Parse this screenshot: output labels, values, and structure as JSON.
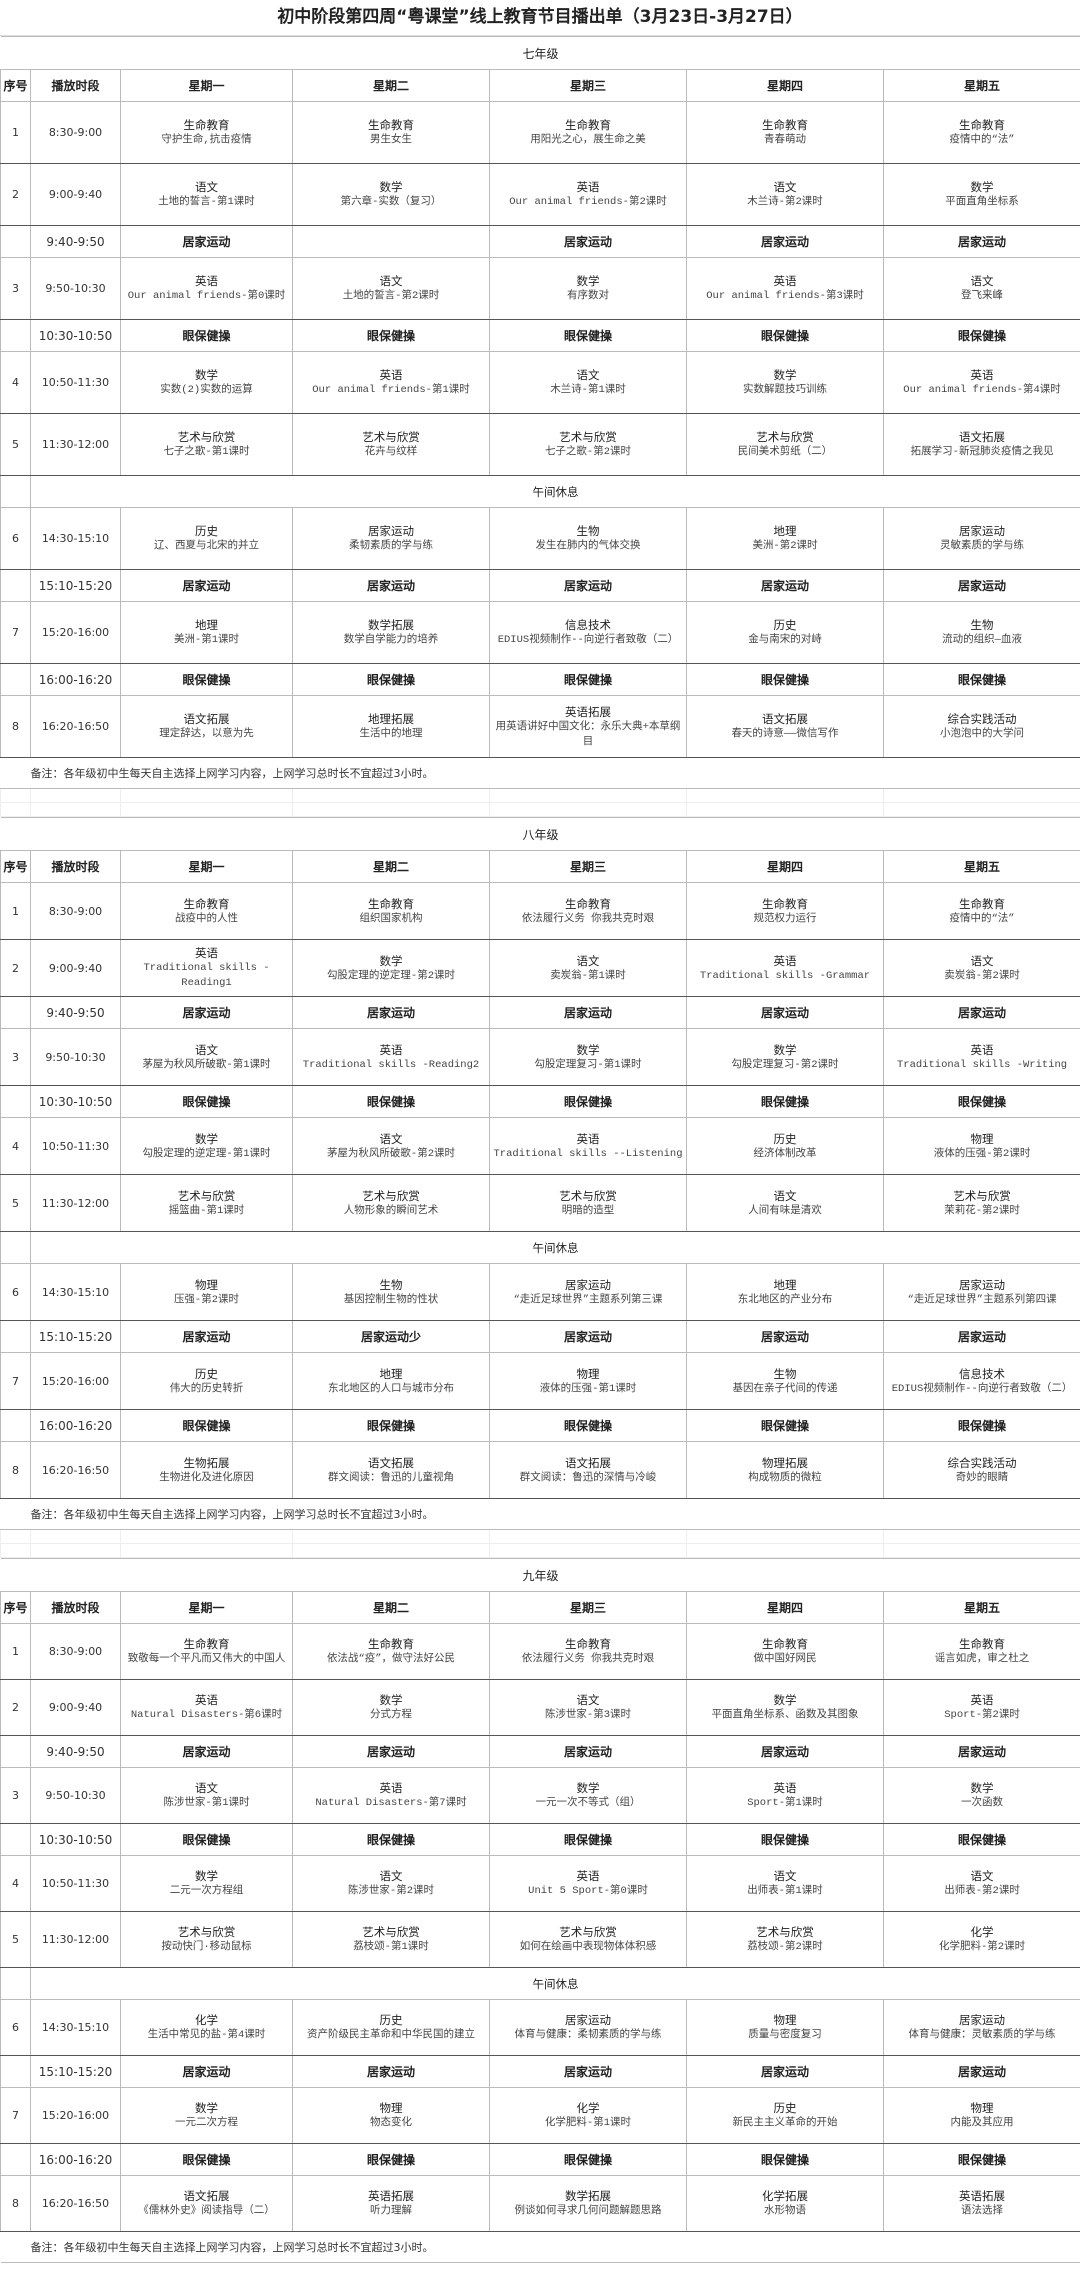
{
  "title": "初中阶段第四周“粤课堂”线上教育节目播出单（3月23日-3月27日）",
  "headers": {
    "seq": "序号",
    "time": "播放时段",
    "days": [
      "星期一",
      "星期二",
      "星期三",
      "星期四",
      "星期五"
    ]
  },
  "grades": [
    {
      "label": "七年级",
      "note": "备注：各年级初中生每天自主选择上网学习内容，上网学习总时长不宜超过3小时。",
      "rows": [
        {
          "type": "lesson",
          "seq": "1",
          "time": "8:30-9:00",
          "cells": [
            {
              "subject": "生命教育",
              "topic": "守护生命,抗击疫情"
            },
            {
              "subject": "生命教育",
              "topic": "男生女生"
            },
            {
              "subject": "生命教育",
              "topic": "用阳光之心，展生命之美"
            },
            {
              "subject": "生命教育",
              "topic": "青春萌动"
            },
            {
              "subject": "生命教育",
              "topic": "疫情中的“法”"
            }
          ]
        },
        {
          "type": "lesson",
          "seq": "2",
          "time": "9:00-9:40",
          "cells": [
            {
              "subject": "语文",
              "topic": "土地的誓言-第1课时"
            },
            {
              "subject": "数学",
              "topic": "第六章-实数（复习）"
            },
            {
              "subject": "英语",
              "topic": "Our animal friends-第2课时"
            },
            {
              "subject": "语文",
              "topic": "木兰诗-第2课时"
            },
            {
              "subject": "数学",
              "topic": "平面直角坐标系"
            }
          ]
        },
        {
          "type": "activity",
          "time": "9:40-9:50",
          "cells": [
            "居家运动",
            "",
            "居家运动",
            "居家运动",
            "居家运动"
          ]
        },
        {
          "type": "lesson",
          "seq": "3",
          "time": "9:50-10:30",
          "cells": [
            {
              "subject": "英语",
              "topic": "Our animal friends-第0课时"
            },
            {
              "subject": "语文",
              "topic": "土地的誓言-第2课时"
            },
            {
              "subject": "数学",
              "topic": "有序数对"
            },
            {
              "subject": "英语",
              "topic": "Our animal friends-第3课时"
            },
            {
              "subject": "语文",
              "topic": "登飞来峰"
            }
          ]
        },
        {
          "type": "activity",
          "time": "10:30-10:50",
          "cells": [
            "眼保健操",
            "眼保健操",
            "眼保健操",
            "眼保健操",
            "眼保健操"
          ]
        },
        {
          "type": "lesson",
          "seq": "4",
          "time": "10:50-11:30",
          "cells": [
            {
              "subject": "数学",
              "topic": "实数(2)实数的运算"
            },
            {
              "subject": "英语",
              "topic": "Our animal friends-第1课时"
            },
            {
              "subject": "语文",
              "topic": "木兰诗-第1课时"
            },
            {
              "subject": "数学",
              "topic": "实数解题技巧训练"
            },
            {
              "subject": "英语",
              "topic": "Our animal friends-第4课时"
            }
          ]
        },
        {
          "type": "lesson",
          "seq": "5",
          "time": "11:30-12:00",
          "cells": [
            {
              "subject": "艺术与欣赏",
              "topic": "七子之歌-第1课时"
            },
            {
              "subject": "艺术与欣赏",
              "topic": "花卉与纹样"
            },
            {
              "subject": "艺术与欣赏",
              "topic": "七子之歌-第2课时"
            },
            {
              "subject": "艺术与欣赏",
              "topic": "民间美术剪纸（二）"
            },
            {
              "subject": "语文拓展",
              "topic": "拓展学习-新冠肺炎疫情之我见"
            }
          ]
        },
        {
          "type": "break",
          "label": "午间休息"
        },
        {
          "type": "lesson",
          "seq": "6",
          "time": "14:30-15:10",
          "cells": [
            {
              "subject": "历史",
              "topic": "辽、西夏与北宋的并立"
            },
            {
              "subject": "居家运动",
              "topic": "柔韧素质的学与练"
            },
            {
              "subject": "生物",
              "topic": "发生在肺内的气体交换"
            },
            {
              "subject": "地理",
              "topic": "美洲-第2课时"
            },
            {
              "subject": "居家运动",
              "topic": "灵敏素质的学与练"
            }
          ]
        },
        {
          "type": "activity",
          "time": "15:10-15:20",
          "cells": [
            "居家运动",
            "居家运动",
            "居家运动",
            "居家运动",
            "居家运动"
          ]
        },
        {
          "type": "lesson",
          "seq": "7",
          "time": "15:20-16:00",
          "cells": [
            {
              "subject": "地理",
              "topic": "美洲-第1课时"
            },
            {
              "subject": "数学拓展",
              "topic": "数学自学能力的培养"
            },
            {
              "subject": "信息技术",
              "topic": "EDIUS视频制作--向逆行者致敬（二）"
            },
            {
              "subject": "历史",
              "topic": "金与南宋的对峙"
            },
            {
              "subject": "生物",
              "topic": "流动的组织—血液"
            }
          ]
        },
        {
          "type": "activity",
          "time": "16:00-16:20",
          "cells": [
            "眼保健操",
            "眼保健操",
            "眼保健操",
            "眼保健操",
            "眼保健操"
          ]
        },
        {
          "type": "lesson",
          "seq": "8",
          "time": "16:20-16:50",
          "cells": [
            {
              "subject": "语文拓展",
              "topic": "理定辞达，以意为先"
            },
            {
              "subject": "地理拓展",
              "topic": "生活中的地理"
            },
            {
              "subject": "英语拓展",
              "topic": "用英语讲好中国文化：永乐大典+本草纲目"
            },
            {
              "subject": "语文拓展",
              "topic": "春天的诗意——微信写作"
            },
            {
              "subject": "综合实践活动",
              "topic": "小泡泡中的大学问"
            }
          ]
        }
      ]
    },
    {
      "label": "八年级",
      "note": "备注：各年级初中生每天自主选择上网学习内容，上网学习总时长不宜超过3小时。",
      "rows": [
        {
          "type": "lesson",
          "seq": "1",
          "time": "8:30-9:00",
          "cells": [
            {
              "subject": "生命教育",
              "topic": "战疫中的人性"
            },
            {
              "subject": "生命教育",
              "topic": "组织国家机构"
            },
            {
              "subject": "生命教育",
              "topic": "依法履行义务  你我共克时艰"
            },
            {
              "subject": "生命教育",
              "topic": "规范权力运行"
            },
            {
              "subject": "生命教育",
              "topic": "疫情中的“法”"
            }
          ]
        },
        {
          "type": "lesson",
          "seq": "2",
          "time": "9:00-9:40",
          "cells": [
            {
              "subject": "英语",
              "topic": "Traditional skills -Reading1"
            },
            {
              "subject": "数学",
              "topic": "勾股定理的逆定理-第2课时"
            },
            {
              "subject": "语文",
              "topic": "卖炭翁-第1课时"
            },
            {
              "subject": "英语",
              "topic": "Traditional skills  -Grammar"
            },
            {
              "subject": "语文",
              "topic": "卖炭翁-第2课时"
            }
          ]
        },
        {
          "type": "activity",
          "time": "9:40-9:50",
          "cells": [
            "居家运动",
            "居家运动",
            "居家运动",
            "居家运动",
            "居家运动"
          ]
        },
        {
          "type": "lesson",
          "seq": "3",
          "time": "9:50-10:30",
          "cells": [
            {
              "subject": "语文",
              "topic": "茅屋为秋风所破歌-第1课时"
            },
            {
              "subject": "英语",
              "topic": "Traditional skills -Reading2"
            },
            {
              "subject": "数学",
              "topic": "勾股定理复习-第1课时"
            },
            {
              "subject": "数学",
              "topic": "勾股定理复习-第2课时"
            },
            {
              "subject": "英语",
              "topic": "Traditional skills -Writing"
            }
          ]
        },
        {
          "type": "activity",
          "time": "10:30-10:50",
          "cells": [
            "眼保健操",
            "眼保健操",
            "眼保健操",
            "眼保健操",
            "眼保健操"
          ]
        },
        {
          "type": "lesson",
          "seq": "4",
          "time": "10:50-11:30",
          "cells": [
            {
              "subject": "数学",
              "topic": "勾股定理的逆定理-第1课时"
            },
            {
              "subject": "语文",
              "topic": "茅屋为秋风所破歌-第2课时"
            },
            {
              "subject": "英语",
              "topic": "Traditional skills --Listening"
            },
            {
              "subject": "历史",
              "topic": "经济体制改革"
            },
            {
              "subject": "物理",
              "topic": "液体的压强-第2课时"
            }
          ]
        },
        {
          "type": "lesson",
          "seq": "5",
          "time": "11:30-12:00",
          "cells": [
            {
              "subject": "艺术与欣赏",
              "topic": "摇篮曲-第1课时"
            },
            {
              "subject": "艺术与欣赏",
              "topic": "人物形象的瞬间艺术"
            },
            {
              "subject": "艺术与欣赏",
              "topic": "明暗的造型"
            },
            {
              "subject": "语文",
              "topic": "人间有味是清欢"
            },
            {
              "subject": "艺术与欣赏",
              "topic": "茉莉花-第2课时"
            }
          ]
        },
        {
          "type": "break",
          "label": "午间休息"
        },
        {
          "type": "lesson",
          "seq": "6",
          "time": "14:30-15:10",
          "cells": [
            {
              "subject": "物理",
              "topic": "压强-第2课时"
            },
            {
              "subject": "生物",
              "topic": "基因控制生物的性状"
            },
            {
              "subject": "居家运动",
              "topic": "“走近足球世界”主题系列第三课"
            },
            {
              "subject": "地理",
              "topic": "东北地区的产业分布"
            },
            {
              "subject": "居家运动",
              "topic": "“走近足球世界”主题系列第四课"
            }
          ]
        },
        {
          "type": "activity",
          "time": "15:10-15:20",
          "cells": [
            "居家运动",
            "居家运动少",
            "居家运动",
            "居家运动",
            "居家运动"
          ]
        },
        {
          "type": "lesson",
          "seq": "7",
          "time": "15:20-16:00",
          "cells": [
            {
              "subject": "历史",
              "topic": "伟大的历史转折"
            },
            {
              "subject": "地理",
              "topic": "东北地区的人口与城市分布"
            },
            {
              "subject": "物理",
              "topic": "液体的压强-第1课时"
            },
            {
              "subject": "生物",
              "topic": "基因在亲子代间的传递"
            },
            {
              "subject": "信息技术",
              "topic": "EDIUS视频制作--向逆行者致敬（二）"
            }
          ]
        },
        {
          "type": "activity",
          "time": "16:00-16:20",
          "cells": [
            "眼保健操",
            "眼保健操",
            "眼保健操",
            "眼保健操",
            "眼保健操"
          ]
        },
        {
          "type": "lesson",
          "seq": "8",
          "time": "16:20-16:50",
          "cells": [
            {
              "subject": "生物拓展",
              "topic": "生物进化及进化原因"
            },
            {
              "subject": "语文拓展",
              "topic": "群文阅读：鲁迅的儿童视角"
            },
            {
              "subject": "语文拓展",
              "topic": "群文阅读：鲁迅的深情与冷峻"
            },
            {
              "subject": "物理拓展",
              "topic": "构成物质的微粒"
            },
            {
              "subject": "综合实践活动",
              "topic": "奇妙的眼睛"
            }
          ]
        }
      ]
    },
    {
      "label": "九年级",
      "note": "备注：各年级初中生每天自主选择上网学习内容，上网学习总时长不宜超过3小时。",
      "rows": [
        {
          "type": "lesson",
          "seq": "1",
          "time": "8:30-9:00",
          "cells": [
            {
              "subject": "生命教育",
              "topic": "致敬每一个平凡而又伟大的中国人"
            },
            {
              "subject": "生命教育",
              "topic": "依法战“疫”，做守法好公民"
            },
            {
              "subject": "生命教育",
              "topic": "依法履行义务  你我共克时艰"
            },
            {
              "subject": "生命教育",
              "topic": "做中国好网民"
            },
            {
              "subject": "生命教育",
              "topic": "谣言如虎，审之杜之"
            }
          ]
        },
        {
          "type": "lesson",
          "seq": "2",
          "time": "9:00-9:40",
          "cells": [
            {
              "subject": "英语",
              "topic": "Natural Disasters-第6课时"
            },
            {
              "subject": "数学",
              "topic": "分式方程"
            },
            {
              "subject": "语文",
              "topic": "陈涉世家-第3课时"
            },
            {
              "subject": "数学",
              "topic": "平面直角坐标系、函数及其图象"
            },
            {
              "subject": "英语",
              "topic": "Sport-第2课时"
            }
          ]
        },
        {
          "type": "activity",
          "time": "9:40-9:50",
          "cells": [
            "居家运动",
            "居家运动",
            "居家运动",
            "居家运动",
            "居家运动"
          ]
        },
        {
          "type": "lesson",
          "seq": "3",
          "time": "9:50-10:30",
          "cells": [
            {
              "subject": "语文",
              "topic": "陈涉世家-第1课时"
            },
            {
              "subject": "英语",
              "topic": "Natural Disasters-第7课时"
            },
            {
              "subject": "数学",
              "topic": "一元一次不等式（组）"
            },
            {
              "subject": "英语",
              "topic": "Sport-第1课时"
            },
            {
              "subject": "数学",
              "topic": "一次函数"
            }
          ]
        },
        {
          "type": "activity",
          "time": "10:30-10:50",
          "cells": [
            "眼保健操",
            "眼保健操",
            "眼保健操",
            "眼保健操",
            "眼保健操"
          ]
        },
        {
          "type": "lesson",
          "seq": "4",
          "time": "10:50-11:30",
          "cells": [
            {
              "subject": "数学",
              "topic": "二元一次方程组"
            },
            {
              "subject": "语文",
              "topic": "陈涉世家-第2课时"
            },
            {
              "subject": "英语",
              "topic": "Unit 5  Sport-第0课时"
            },
            {
              "subject": "语文",
              "topic": "出师表-第1课时"
            },
            {
              "subject": "语文",
              "topic": "出师表-第2课时"
            }
          ]
        },
        {
          "type": "lesson",
          "seq": "5",
          "time": "11:30-12:00",
          "cells": [
            {
              "subject": "艺术与欣赏",
              "topic": "按动快门·移动鼠标"
            },
            {
              "subject": "艺术与欣赏",
              "topic": "荔枝颂-第1课时"
            },
            {
              "subject": "艺术与欣赏",
              "topic": "如何在绘画中表现物体体积感"
            },
            {
              "subject": "艺术与欣赏",
              "topic": "荔枝颂-第2课时"
            },
            {
              "subject": "化学",
              "topic": "化学肥料-第2课时"
            }
          ]
        },
        {
          "type": "break",
          "label": "午间休息"
        },
        {
          "type": "lesson",
          "seq": "6",
          "time": "14:30-15:10",
          "cells": [
            {
              "subject": "化学",
              "topic": "生活中常见的盐-第4课时"
            },
            {
              "subject": "历史",
              "topic": "资产阶级民主革命和中华民国的建立"
            },
            {
              "subject": "居家运动",
              "topic": "体育与健康：柔韧素质的学与练"
            },
            {
              "subject": "物理",
              "topic": "质量与密度复习"
            },
            {
              "subject": "居家运动",
              "topic": "体育与健康：灵敏素质的学与练"
            }
          ]
        },
        {
          "type": "activity",
          "time": "15:10-15:20",
          "cells": [
            "居家运动",
            "居家运动",
            "居家运动",
            "居家运动",
            "居家运动"
          ]
        },
        {
          "type": "lesson",
          "seq": "7",
          "time": "15:20-16:00",
          "cells": [
            {
              "subject": "数学",
              "topic": "一元二次方程"
            },
            {
              "subject": "物理",
              "topic": "物态变化"
            },
            {
              "subject": "化学",
              "topic": "化学肥料-第1课时"
            },
            {
              "subject": "历史",
              "topic": "新民主主义革命的开始"
            },
            {
              "subject": "物理",
              "topic": "内能及其应用"
            }
          ]
        },
        {
          "type": "activity",
          "time": "16:00-16:20",
          "cells": [
            "眼保健操",
            "眼保健操",
            "眼保健操",
            "眼保健操",
            "眼保健操"
          ]
        },
        {
          "type": "lesson",
          "seq": "8",
          "time": "16:20-16:50",
          "cells": [
            {
              "subject": "语文拓展",
              "topic": "《儒林外史》阅读指导（二）"
            },
            {
              "subject": "英语拓展",
              "topic": "听力理解"
            },
            {
              "subject": "数学拓展",
              "topic": "例谈如何寻求几何问题解题思路"
            },
            {
              "subject": "化学拓展",
              "topic": "水形物语"
            },
            {
              "subject": "英语拓展",
              "topic": "语法选择"
            }
          ]
        }
      ]
    }
  ]
}
